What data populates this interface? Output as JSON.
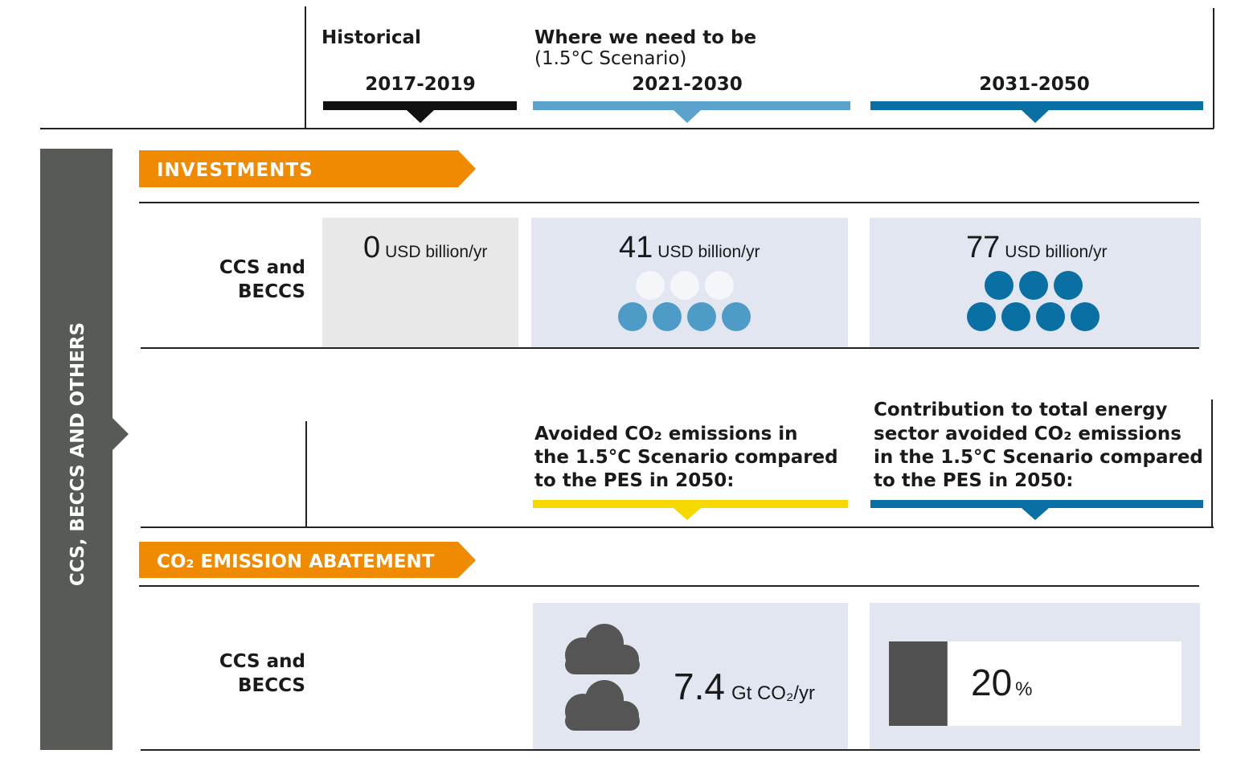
{
  "header": {
    "historical": "Historical",
    "target": "Where we need to be",
    "target_sub": "(1.5°C Scenario)",
    "periods": [
      "2017-2019",
      "2021-2030",
      "2031-2050"
    ]
  },
  "side_label": "CCS, BECCS AND OTHERS",
  "investments": {
    "title": "INVESTMENTS",
    "row_label": [
      "CCS and",
      "BECCS"
    ],
    "cells": [
      {
        "value": 0,
        "unit": "USD billion/yr"
      },
      {
        "value": 41,
        "unit": "USD billion/yr"
      },
      {
        "value": 77,
        "unit": "USD billion/yr"
      }
    ]
  },
  "notes": {
    "avoided": [
      "Avoided CO₂ emissions in",
      "the 1.5°C Scenario compared",
      "to the PES in 2050:"
    ],
    "contribution": [
      "Contribution to total energy",
      "sector avoided CO₂ emissions",
      "in the 1.5°C Scenario compared",
      "to the PES in 2050:"
    ]
  },
  "abatement": {
    "title": "CO₂ EMISSION ABATEMENT",
    "row_label": [
      "CCS and",
      "BECCS"
    ],
    "avoided": {
      "value": 7.4,
      "unit": "Gt CO₂/yr"
    },
    "share": {
      "value": 20,
      "unit": "%"
    }
  }
}
